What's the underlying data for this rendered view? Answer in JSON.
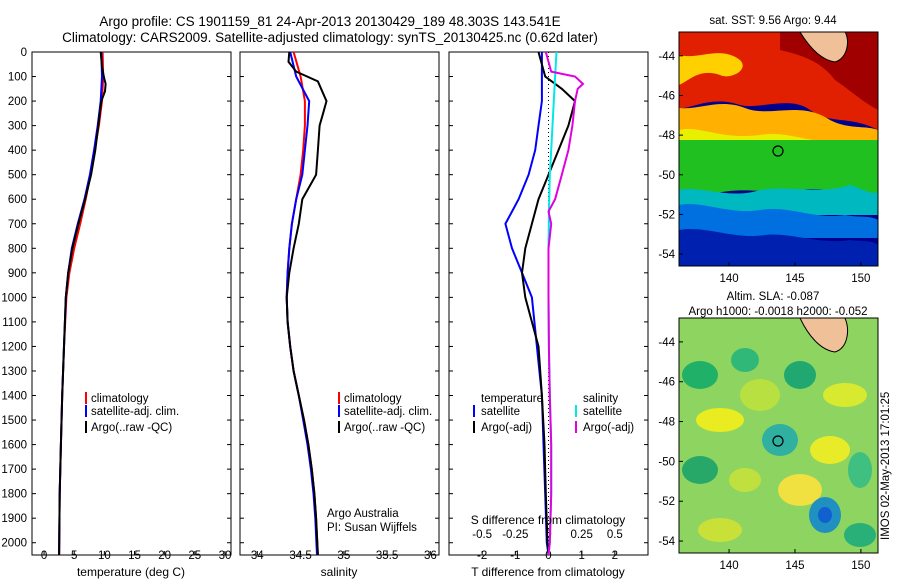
{
  "header": {
    "line1": "Argo profile: CS 1901159_81 24-Apr-2013 20130429_189 48.303S 143.541E",
    "line2": "Climatology: CARS2009. Satellite-adjusted climatology: synTS_20130425.nc (0.62d later)"
  },
  "stamp": "IMOS 02-May-2013 17:01:25",
  "colors": {
    "climatology": "#ff0000",
    "satellite": "#0000ff",
    "argo": "#000000",
    "sal_satellite": "#00e8e8",
    "sal_argo": "#e000e0"
  },
  "depth_ticks": [
    "0",
    "100",
    "200",
    "300",
    "400",
    "500",
    "600",
    "700",
    "800",
    "900",
    "1000",
    "1100",
    "1200",
    "1300",
    "1400",
    "1500",
    "1600",
    "1700",
    "1800",
    "1900",
    "2000"
  ],
  "panels": {
    "temp": {
      "xticks": [
        "0",
        "5",
        "10",
        "15",
        "20",
        "25",
        "30"
      ],
      "xlabel": "temperature (deg C)",
      "legend": [
        "climatology",
        "satellite-adj. clim.",
        "Argo(..raw -QC)"
      ]
    },
    "sal": {
      "xticks": [
        "34",
        "34.5",
        "35",
        "35.5",
        "36"
      ],
      "xlabel": "salinity",
      "legend": [
        "climatology",
        "satellite-adj. clim.",
        "Argo(..raw -QC)"
      ],
      "credit1": "Argo Australia",
      "credit2": "PI: Susan Wijffels"
    },
    "diff": {
      "xticks": [
        "-2",
        "-1",
        "0",
        "1",
        "2"
      ],
      "sticks": [
        "-0.5",
        "-0.25",
        "0",
        "0.25",
        "0.5"
      ],
      "slabel": "S difference from climatology",
      "xlabel": "T difference from climatology",
      "leg_t_title": "temperature",
      "leg_s_title": "salinity",
      "leg_t": [
        "satellite",
        "Argo(-adj)"
      ],
      "leg_s": [
        "satellite",
        "Argo(-adj)"
      ]
    }
  },
  "maps": {
    "sst": {
      "title": "sat. SST: 9.56 Argo: 9.44",
      "yticks": [
        "-44",
        "-46",
        "-48",
        "-50",
        "-52",
        "-54"
      ],
      "xticks": [
        "140",
        "145",
        "150"
      ]
    },
    "sla": {
      "title1": "Altim. SLA: -0.087",
      "title2": "Argo h1000: -0.0018 h2000: -0.052",
      "yticks": [
        "-44",
        "-46",
        "-48",
        "-50",
        "-52",
        "-54"
      ],
      "xticks": [
        "140",
        "145",
        "150"
      ]
    }
  },
  "chart_data": [
    {
      "type": "line",
      "title": "",
      "xlabel": "temperature (deg C)",
      "ylabel": "",
      "xlim": [
        -2,
        31
      ],
      "ylim": [
        2050,
        0
      ],
      "series": [
        {
          "name": "climatology",
          "depth": [
            0,
            100,
            200,
            300,
            400,
            500,
            600,
            700,
            800,
            900,
            1000,
            1200,
            1400,
            1600,
            1800,
            2050
          ],
          "values": [
            9.7,
            9.8,
            9.6,
            9.1,
            8.4,
            7.7,
            6.9,
            6.0,
            5.0,
            4.2,
            3.7,
            3.3,
            3.0,
            2.8,
            2.6,
            2.5
          ]
        },
        {
          "name": "satellite-adj. clim.",
          "depth": [
            0,
            100,
            200,
            300,
            400,
            500,
            600,
            700,
            800,
            900,
            1000,
            1200,
            1400,
            1600,
            1800,
            2050
          ],
          "values": [
            9.5,
            9.6,
            9.4,
            8.9,
            8.3,
            7.6,
            6.7,
            5.6,
            4.6,
            4.0,
            3.6,
            3.3,
            3.0,
            2.8,
            2.6,
            2.5
          ]
        },
        {
          "name": "Argo(..raw -QC)",
          "depth": [
            0,
            60,
            100,
            130,
            160,
            200,
            300,
            400,
            500,
            600,
            700,
            800,
            900,
            1000,
            1200,
            1400,
            1600,
            1800,
            2050
          ],
          "values": [
            9.4,
            9.6,
            9.9,
            10.2,
            10.1,
            9.5,
            9.0,
            8.5,
            7.8,
            6.8,
            5.7,
            4.7,
            4.0,
            3.6,
            3.3,
            3.0,
            2.8,
            2.6,
            2.5
          ]
        }
      ]
    },
    {
      "type": "line",
      "xlabel": "salinity",
      "xlim": [
        33.8,
        36.1
      ],
      "ylim": [
        2050,
        0
      ],
      "series": [
        {
          "name": "climatology",
          "depth": [
            0,
            100,
            200,
            300,
            400,
            500,
            600,
            700,
            800,
            900,
            1000,
            1100,
            1200,
            1300,
            1400,
            1500,
            1600,
            1700,
            1800,
            1900,
            2050
          ],
          "values": [
            34.42,
            34.5,
            34.55,
            34.55,
            34.53,
            34.5,
            34.45,
            34.4,
            34.37,
            34.35,
            34.34,
            34.35,
            34.38,
            34.42,
            34.48,
            34.54,
            34.59,
            34.63,
            34.66,
            34.68,
            34.7
          ]
        },
        {
          "name": "satellite-adj. clim.",
          "depth": [
            0,
            100,
            200,
            300,
            400,
            500,
            600,
            700,
            800,
            900,
            1000,
            1100,
            1200,
            1300,
            1400,
            1500,
            1600,
            1700,
            1800,
            1900,
            2050
          ],
          "values": [
            34.38,
            34.45,
            34.6,
            34.58,
            34.55,
            34.52,
            34.45,
            34.4,
            34.37,
            34.35,
            34.34,
            34.35,
            34.38,
            34.42,
            34.48,
            34.53,
            34.58,
            34.62,
            34.65,
            34.67,
            34.69
          ]
        },
        {
          "name": "Argo(..raw -QC)",
          "depth": [
            0,
            40,
            80,
            120,
            160,
            200,
            250,
            300,
            400,
            500,
            600,
            700,
            800,
            900,
            1000,
            1100,
            1200,
            1300,
            1400,
            1500,
            1600,
            1700,
            1800,
            1900,
            2050
          ],
          "values": [
            34.37,
            34.36,
            34.45,
            34.7,
            34.75,
            34.8,
            34.76,
            34.72,
            34.7,
            34.68,
            34.52,
            34.48,
            34.42,
            34.37,
            34.34,
            34.35,
            34.38,
            34.42,
            34.48,
            34.54,
            34.59,
            34.63,
            34.66,
            34.68,
            34.7
          ]
        }
      ]
    },
    {
      "type": "line",
      "xlabel": "T difference from climatology",
      "xlim": [
        -3,
        3
      ],
      "ylim": [
        2050,
        0
      ],
      "series": [
        {
          "name": "satellite",
          "depth": [
            0,
            100,
            200,
            300,
            400,
            500,
            600,
            700,
            800,
            900,
            1000,
            1200,
            1400,
            1600,
            1800,
            2000,
            2050
          ],
          "values": [
            -0.2,
            -0.2,
            -0.2,
            -0.3,
            -0.4,
            -0.6,
            -0.9,
            -1.3,
            -1.1,
            -0.8,
            -0.5,
            -0.35,
            -0.2,
            -0.15,
            -0.1,
            -0.05,
            0
          ]
        },
        {
          "name": "Argo(-adj)",
          "depth": [
            0,
            100,
            150,
            200,
            300,
            400,
            500,
            600,
            700,
            800,
            900,
            1000,
            1100,
            1200,
            1400,
            1600,
            1800,
            2000,
            2050
          ],
          "values": [
            -0.3,
            -0.1,
            0.4,
            0.8,
            0.6,
            0.3,
            0,
            -0.3,
            -0.5,
            -0.7,
            -0.8,
            -0.7,
            -0.5,
            -0.3,
            -0.2,
            -0.12,
            -0.08,
            -0.03,
            0
          ]
        },
        {
          "name": "salinity satellite",
          "depth": [
            0,
            100,
            200,
            300,
            400,
            500,
            600,
            700,
            800,
            1000,
            1200,
            1400,
            1600,
            1800,
            2000,
            2050
          ],
          "values": [
            0.06,
            0.05,
            0.04,
            0.03,
            0.02,
            0.01,
            0.005,
            0.002,
            0.0,
            0.0,
            0.003,
            0.01,
            0.02,
            0.02,
            0.01,
            0
          ]
        },
        {
          "name": "salinity Argo(-adj)",
          "depth": [
            0,
            80,
            100,
            130,
            150,
            200,
            300,
            400,
            500,
            600,
            650,
            700,
            800,
            1000,
            1200,
            1400,
            1600,
            1800,
            2000,
            2050
          ],
          "values": [
            -0.02,
            0.02,
            0.2,
            0.26,
            0.22,
            0.2,
            0.18,
            0.15,
            0.1,
            0.05,
            0.0,
            0.02,
            0.0,
            0.0,
            0.003,
            0.01,
            0.02,
            0.02,
            0.01,
            0
          ]
        }
      ]
    }
  ]
}
